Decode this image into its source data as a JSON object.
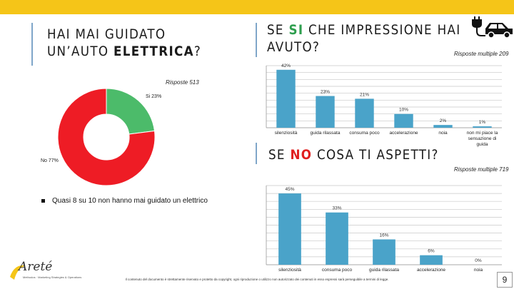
{
  "left": {
    "title_line1": "HAI MAI GUIDATO",
    "title_line2_prefix": "UN’AUTO ",
    "title_line2_bold": "ELETTRICA",
    "title_line2_suffix": "?",
    "note": "Risposte 513",
    "bullet": "Quasi 8 su 10 non hanno mai guidato un elettrico"
  },
  "top_right": {
    "title_prefix": "SE ",
    "title_highlight": "SI",
    "title_rest": " CHE IMPRESSIONE HAI",
    "title_line2": "AVUTO?",
    "note": "Risposte multiple 209"
  },
  "bottom_right": {
    "title_prefix": "SE ",
    "title_highlight": "NO",
    "title_rest": " COSA TI ASPETTI?",
    "note": "Risposte multiple 719"
  },
  "colors": {
    "accent_bar": "#f5c518",
    "pie_yes": "#4cbb6a",
    "pie_no": "#ee1c25",
    "bars": "#4aa3c9",
    "grid": "#c8c8c8"
  },
  "icons": [
    "ev-car-icon",
    "plug-icon"
  ],
  "chart_data": [
    {
      "type": "pie",
      "donut": true,
      "categories": [
        "Si",
        "No"
      ],
      "values": [
        23,
        77
      ],
      "labels": [
        "Si 23%",
        "No 77%"
      ]
    },
    {
      "type": "bar",
      "categories": [
        "silenziosità",
        "guida rilassata",
        "consuma poco",
        "accelerazione",
        "noia",
        "non mi piace la sensazione di guida"
      ],
      "values": [
        42,
        23,
        21,
        10,
        2,
        1
      ],
      "value_labels": [
        "42%",
        "23%",
        "21%",
        "10%",
        "2%",
        "1%"
      ],
      "ylim": [
        0,
        45
      ],
      "grid": true
    },
    {
      "type": "bar",
      "categories": [
        "silenziosità",
        "consuma poco",
        "guida rilassata",
        "accelerazione",
        "noia"
      ],
      "values": [
        45,
        33,
        16,
        6,
        0
      ],
      "value_labels": [
        "45%",
        "33%",
        "16%",
        "6%",
        "0%"
      ],
      "ylim": [
        0,
        50
      ],
      "grid": true
    }
  ],
  "footer": {
    "disclaimer": "Il contenuto del documento è strettamente riservato e protetto da copyright, ogni riproduzione o utilizzo non autorizzato dei contenuti in esso espressi sarà perseguibile a termini di legge.",
    "page_number": "9"
  },
  "logo": {
    "name": "Areté",
    "tagline": "Methodos · Marketing Strategies & Operations"
  }
}
